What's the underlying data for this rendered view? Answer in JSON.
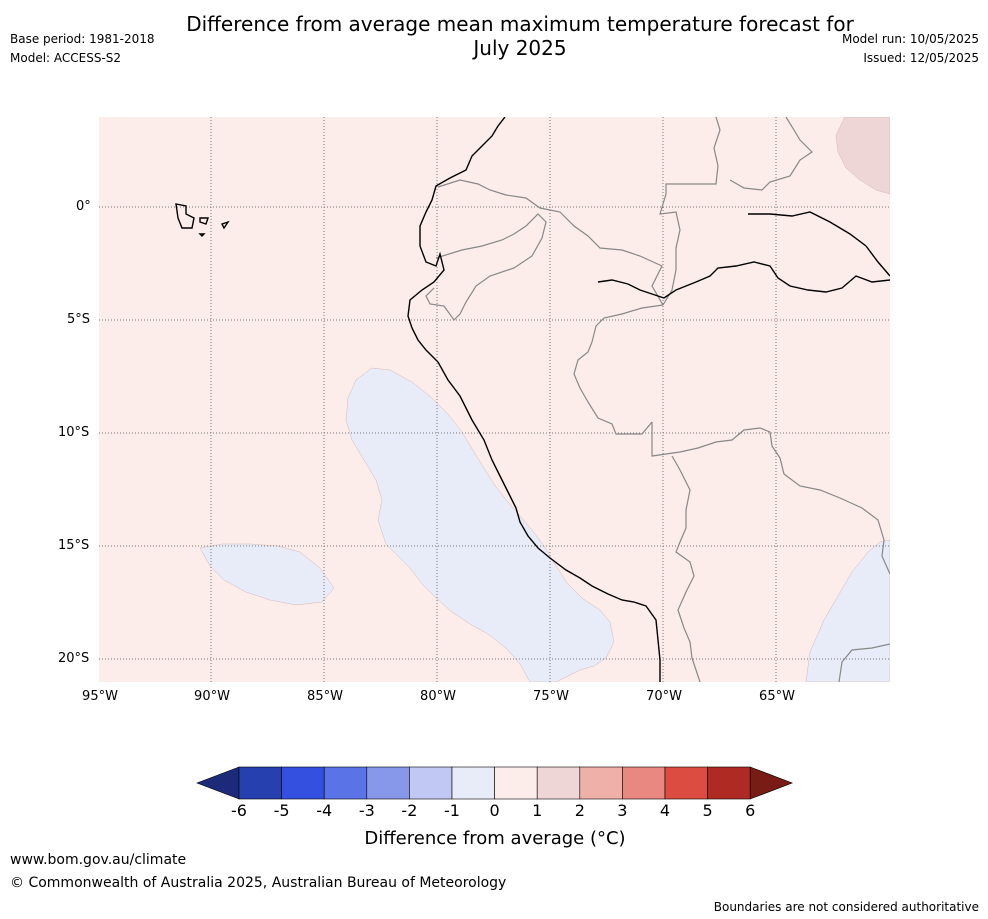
{
  "header": {
    "title_line1": "Difference from average mean maximum temperature forecast for",
    "title_line2": "July 2025",
    "base_period": "Base period: 1981-2018",
    "model": "Model: ACCESS-S2",
    "model_run": "Model run: 10/05/2025",
    "issued": "Issued: 12/05/2025"
  },
  "map": {
    "lat_ticks": [
      "0°",
      "5°S",
      "10°S",
      "15°S",
      "20°S"
    ],
    "lon_ticks": [
      "95°W",
      "90°W",
      "85°W",
      "80°W",
      "75°W",
      "70°W",
      "65°W"
    ],
    "colors": {
      "ocean_background": "#fcecea",
      "below_average_patch": "#e8ecf8",
      "above_1_patch": "#efd6d6",
      "coastline": "#000000",
      "borders": "#808080",
      "gridlines": "#808080"
    }
  },
  "colorbar": {
    "ticks": [
      "-6",
      "-5",
      "-4",
      "-3",
      "-2",
      "-1",
      "0",
      "1",
      "2",
      "3",
      "4",
      "5",
      "6"
    ],
    "colors": [
      "#1d2a7a",
      "#2640b0",
      "#3350e0",
      "#5a73e6",
      "#8797ea",
      "#c2c8f4",
      "#e8ecf8",
      "#fcecea",
      "#efd6d6",
      "#efb0aa",
      "#e88880",
      "#dc4c40",
      "#ae2a22",
      "#7a1c16"
    ],
    "label": "Difference from average (°C)"
  },
  "footer": {
    "website": "www.bom.gov.au/climate",
    "copyright": "© Commonwealth of Australia 2025, Australian Bureau of Meteorology",
    "disclaimer": "Boundaries are not considered authoritative"
  }
}
